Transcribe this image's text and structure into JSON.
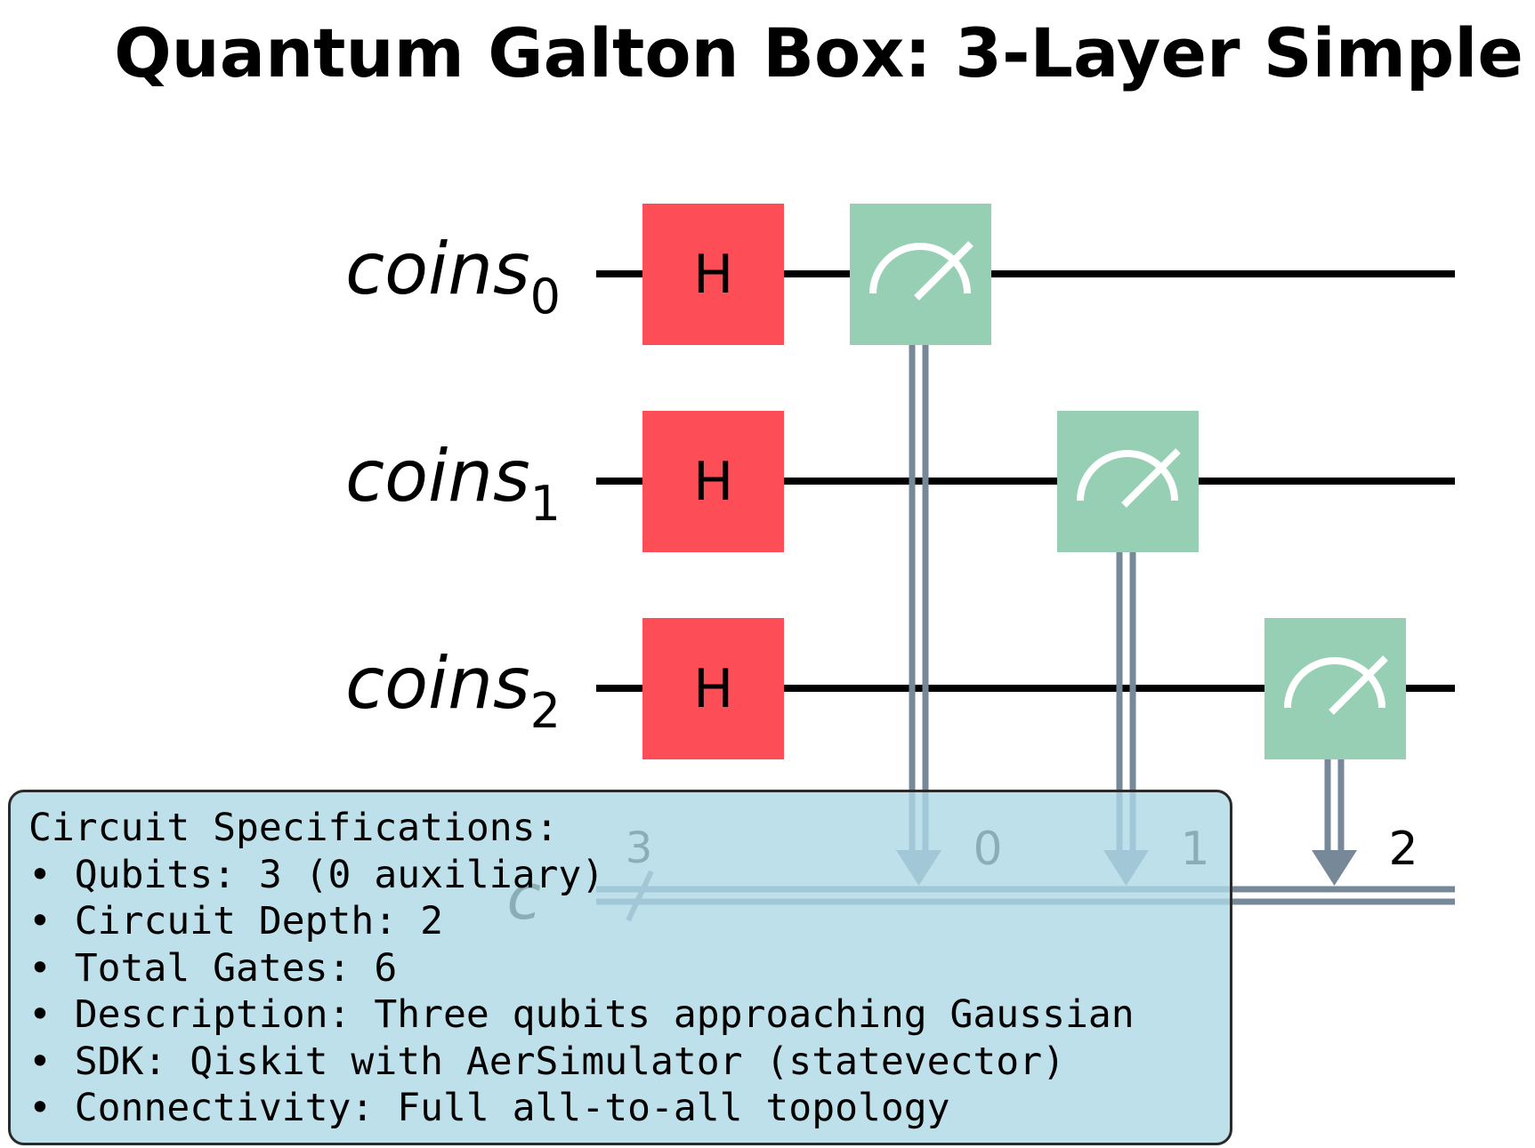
{
  "title": "Quantum Galton Box: 3-Layer Simple",
  "circuit": {
    "qubits": [
      {
        "name": "coins",
        "index": "0"
      },
      {
        "name": "coins",
        "index": "1"
      },
      {
        "name": "coins",
        "index": "2"
      }
    ],
    "classical_register": {
      "name": "c",
      "size": "3"
    },
    "gates": [
      {
        "type": "H",
        "label": "H",
        "qubit": 0
      },
      {
        "type": "H",
        "label": "H",
        "qubit": 1
      },
      {
        "type": "H",
        "label": "H",
        "qubit": 2
      },
      {
        "type": "measure",
        "qubit": 0,
        "clbit": "0"
      },
      {
        "type": "measure",
        "qubit": 1,
        "clbit": "1"
      },
      {
        "type": "measure",
        "qubit": 2,
        "clbit": "2"
      }
    ],
    "colors": {
      "h_gate": "#fd4e58",
      "measure_gate": "#96cfb3",
      "classical_wire": "#778899",
      "wire": "#000000"
    }
  },
  "specs": {
    "heading": "Circuit Specifications:",
    "items": [
      "• Qubits: 3 (0 auxiliary)",
      "• Circuit Depth: 2",
      "• Total Gates: 6",
      "• Description: Three qubits approaching Gaussian",
      "• SDK: Qiskit with AerSimulator (statevector)",
      "• Connectivity: Full all-to-all topology"
    ]
  }
}
